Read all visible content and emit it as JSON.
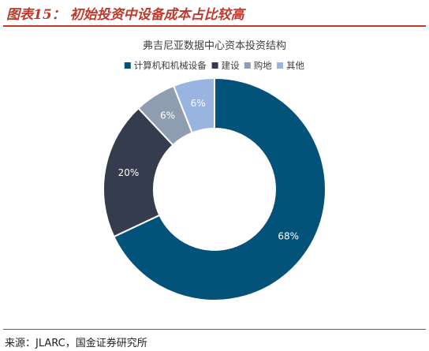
{
  "figure": {
    "title": "图表15： 初始投资中设备成本占比较高",
    "source": "来源：JLARC，国金证券研究所"
  },
  "chart_data": {
    "type": "pie",
    "title": "弗吉尼亚数据中心资本投资结构",
    "legend_position": "top",
    "series": [
      {
        "name": "计算机和机械设备",
        "value": 68,
        "label": "68%",
        "color": "#03527a"
      },
      {
        "name": "建设",
        "value": 20,
        "label": "20%",
        "color": "#343c4e"
      },
      {
        "name": "购地",
        "value": 6,
        "label": "6%",
        "color": "#8e9db0"
      },
      {
        "name": "其他",
        "value": 6,
        "label": "6%",
        "color": "#9ab4e2"
      }
    ]
  }
}
